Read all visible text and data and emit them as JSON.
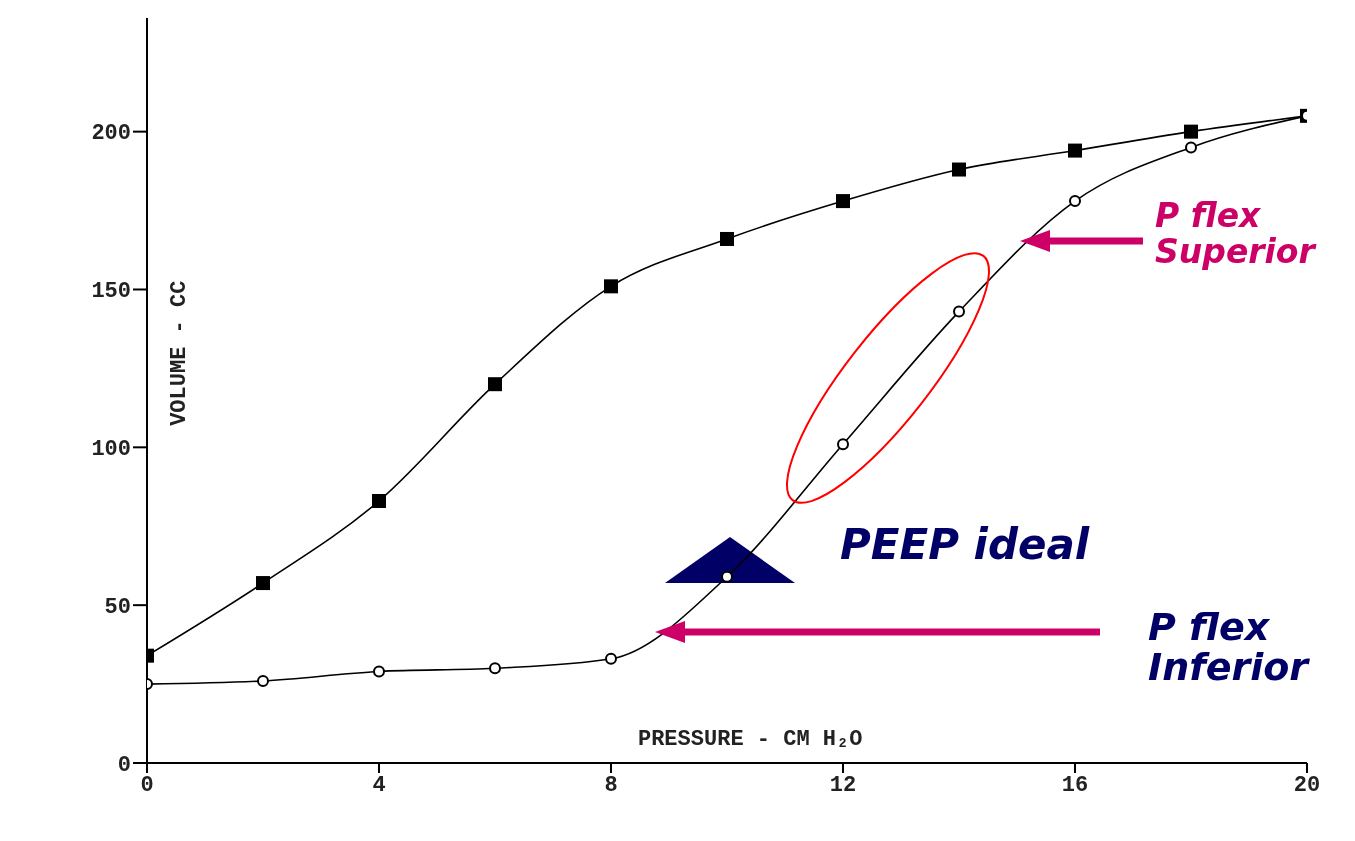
{
  "chart_data": {
    "type": "line",
    "xlabel": "PRESSURE - CM H₂O",
    "ylabel": "VOLUME - CC",
    "x": [
      0,
      2,
      4,
      6,
      8,
      10,
      12,
      14,
      16,
      18,
      20
    ],
    "series": [
      {
        "color": "#000000",
        "marker": "square",
        "values": [
          34,
          57,
          83,
          120,
          151,
          166,
          178,
          188,
          194,
          200,
          205
        ]
      },
      {
        "color": "#000000",
        "marker": "circle",
        "values": [
          25,
          26,
          29,
          30,
          33,
          59,
          101,
          143,
          178,
          195,
          205
        ]
      }
    ],
    "xlim": [
      0,
      20
    ],
    "xticks": [
      0,
      4,
      8,
      12,
      16,
      20
    ],
    "ylim": [
      0,
      236
    ],
    "yticks": [
      0,
      50,
      100,
      150,
      200
    ],
    "grid": false,
    "legend": false,
    "annotations": [
      "PEEP ideal",
      "P flex Inferior",
      "P flex Superior"
    ]
  }
}
